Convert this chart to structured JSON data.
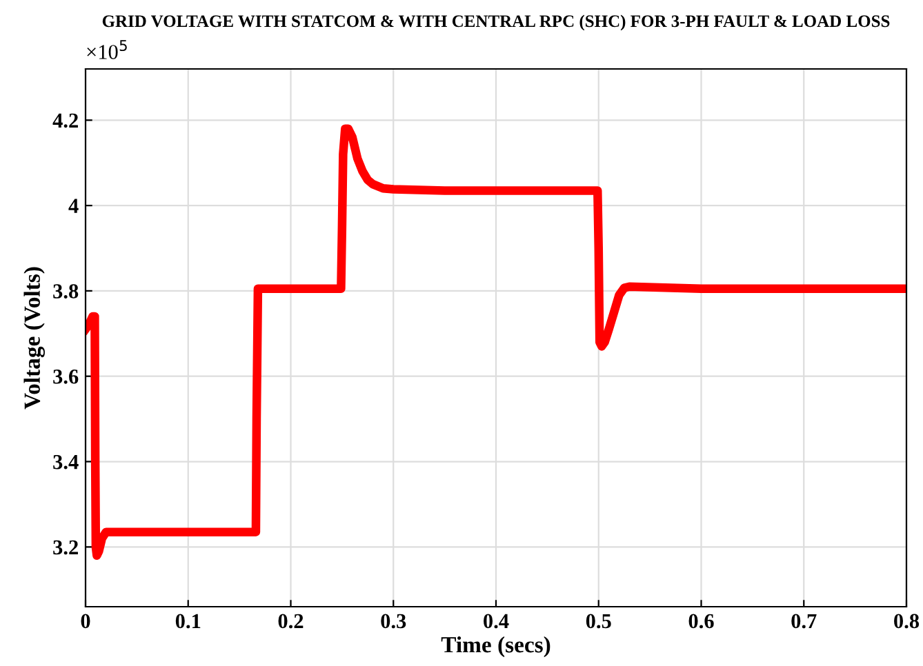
{
  "chart_data": {
    "type": "line",
    "title": "GRID VOLTAGE WITH STATCOM & WITH CENTRAL RPC (SHC) FOR 3-PH FAULT & LOAD LOSS",
    "xlabel": "Time (secs)",
    "ylabel": "Voltage (Volts)",
    "annotations": [
      "×10$^{5}$"
    ],
    "series": [
      {
        "color": "#ff0000",
        "x": [
          0,
          0.003,
          0.007,
          0.009,
          0.0095,
          0.01,
          0.011,
          0.013,
          0.016,
          0.02,
          0.03,
          0.1,
          0.166,
          0.1667,
          0.168,
          0.2,
          0.249,
          0.25,
          0.251,
          0.253,
          0.256,
          0.26,
          0.265,
          0.27,
          0.275,
          0.28,
          0.29,
          0.3,
          0.35,
          0.4,
          0.45,
          0.499,
          0.5,
          0.501,
          0.503,
          0.506,
          0.51,
          0.515,
          0.52,
          0.525,
          0.53,
          0.6,
          0.7,
          0.8
        ],
        "values": [
          3.71,
          3.72,
          3.74,
          3.74,
          3.4,
          3.2,
          3.18,
          3.19,
          3.22,
          3.235,
          3.235,
          3.235,
          3.235,
          3.5,
          3.805,
          3.805,
          3.805,
          3.95,
          4.12,
          4.18,
          4.18,
          4.16,
          4.11,
          4.08,
          4.06,
          4.05,
          4.04,
          4.038,
          4.035,
          4.035,
          4.035,
          4.035,
          3.9,
          3.68,
          3.67,
          3.68,
          3.71,
          3.75,
          3.79,
          3.807,
          3.81,
          3.805,
          3.805,
          3.805
        ]
      }
    ],
    "xlim": [
      0,
      0.8
    ],
    "xticks": [
      0,
      0.1,
      0.2,
      0.3,
      0.4,
      0.5,
      0.6,
      0.7,
      0.8
    ],
    "ylim": [
      3.06,
      4.32
    ],
    "yticks": [
      3.2,
      3.4,
      3.6,
      3.8,
      4,
      4.2
    ],
    "grid": true,
    "line_style": "solid",
    "marker": "none"
  }
}
